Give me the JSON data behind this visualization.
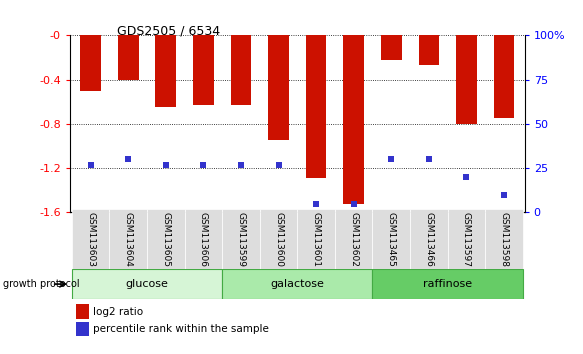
{
  "title": "GDS2505 / 6534",
  "samples": [
    "GSM113603",
    "GSM113604",
    "GSM113605",
    "GSM113606",
    "GSM113599",
    "GSM113600",
    "GSM113601",
    "GSM113602",
    "GSM113465",
    "GSM113466",
    "GSM113597",
    "GSM113598"
  ],
  "log2_ratio": [
    -0.5,
    -0.4,
    -0.65,
    -0.63,
    -0.63,
    -0.95,
    -1.29,
    -1.52,
    -0.22,
    -0.27,
    -0.8,
    -0.75
  ],
  "percentile_rank": [
    27,
    30,
    27,
    27,
    27,
    27,
    5,
    5,
    30,
    30,
    20,
    10
  ],
  "groups": [
    {
      "label": "glucose",
      "start": 0,
      "end": 4,
      "color": "#d6f5d6"
    },
    {
      "label": "galactose",
      "start": 4,
      "end": 8,
      "color": "#aaeaaa"
    },
    {
      "label": "raffinose",
      "start": 8,
      "end": 12,
      "color": "#66cc66"
    }
  ],
  "ylim_left": [
    -1.6,
    0.0
  ],
  "ylim_right": [
    0,
    100
  ],
  "yticks_left": [
    0.0,
    -0.4,
    -0.8,
    -1.2,
    -1.6
  ],
  "yticks_left_labels": [
    "-0",
    "-0.4",
    "-0.8",
    "-1.2",
    "-1.6"
  ],
  "yticks_right": [
    100,
    75,
    50,
    25,
    0
  ],
  "yticks_right_labels": [
    "100%",
    "75",
    "50",
    "25",
    "0"
  ],
  "bar_color": "#cc1100",
  "dot_color": "#3333cc",
  "bar_width": 0.55,
  "legend_log2": "log2 ratio",
  "legend_percentile": "percentile rank within the sample",
  "group_label": "growth protocol"
}
